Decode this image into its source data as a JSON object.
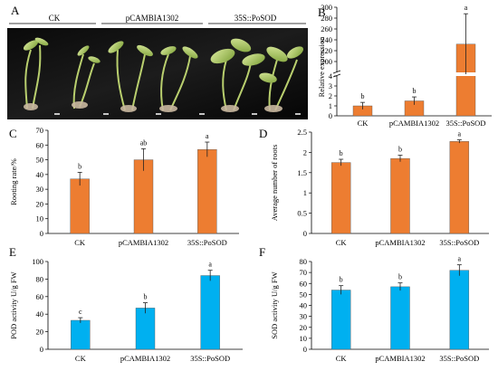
{
  "figure": {
    "photo": {
      "panel_label": "A",
      "groups": [
        "CK",
        "pCAMBIA1302",
        "35S::PoSOD"
      ]
    }
  },
  "chart_data": [
    {
      "panel_label": "B",
      "type": "bar",
      "categories": [
        "CK",
        "pCAMBIA1302",
        "35S::PoSOD"
      ],
      "values": [
        1,
        1.5,
        232
      ],
      "errors": [
        0.35,
        0.4,
        56
      ],
      "significance": [
        "b",
        "b",
        "a"
      ],
      "ylabel": "Relative expression",
      "axis_break": [
        4,
        180
      ],
      "ylim_lower": [
        0,
        4
      ],
      "ylim_upper": [
        180,
        300
      ],
      "yticks_lower": [
        "0",
        "1",
        "2",
        "3",
        "4"
      ],
      "yticks_upper": [
        "200",
        "220",
        "240",
        "260",
        "280",
        "300"
      ],
      "color": "#ED7D31"
    },
    {
      "panel_label": "C",
      "type": "bar",
      "categories": [
        "CK",
        "pCAMBIA1302",
        "35S::PoSOD"
      ],
      "values": [
        37,
        50,
        57
      ],
      "errors": [
        4.5,
        7.5,
        5
      ],
      "significance": [
        "b",
        "ab",
        "a"
      ],
      "ylabel": "Rooting rate/%",
      "ylim": [
        0,
        70
      ],
      "yticks": [
        "0",
        "10",
        "20",
        "30",
        "40",
        "50",
        "60",
        "70"
      ],
      "color": "#ED7D31"
    },
    {
      "panel_label": "D",
      "type": "bar",
      "categories": [
        "CK",
        "pCAMBIA1302",
        "35S::PoSOD"
      ],
      "values": [
        1.75,
        1.85,
        2.27
      ],
      "errors": [
        0.08,
        0.08,
        0.04
      ],
      "significance": [
        "b",
        "b",
        "a"
      ],
      "ylabel": "Average number of roots",
      "ylim": [
        0,
        2.5
      ],
      "yticks": [
        "0",
        "0.5",
        "1",
        "1.5",
        "2",
        "2.5"
      ],
      "color": "#ED7D31"
    },
    {
      "panel_label": "E",
      "type": "bar",
      "categories": [
        "CK",
        "pCAMBIA1302",
        "35S::PoSOD"
      ],
      "values": [
        33,
        47,
        84
      ],
      "errors": [
        3,
        6,
        6
      ],
      "significance": [
        "c",
        "b",
        "a"
      ],
      "ylabel": "POD activity U/g FW",
      "ylim": [
        0,
        100
      ],
      "yticks": [
        "0",
        "20",
        "40",
        "60",
        "80",
        "100"
      ],
      "color": "#00B0F0"
    },
    {
      "panel_label": "F",
      "type": "bar",
      "categories": [
        "CK",
        "pCAMBIA1302",
        "35S::PoSOD"
      ],
      "values": [
        54,
        57,
        72
      ],
      "errors": [
        4,
        3.5,
        5
      ],
      "significance": [
        "b",
        "b",
        "a"
      ],
      "ylabel": "SOD activity U/g FW",
      "ylim": [
        0,
        80
      ],
      "yticks": [
        "0",
        "10",
        "20",
        "30",
        "40",
        "50",
        "60",
        "70",
        "80"
      ],
      "color": "#00B0F0"
    }
  ]
}
